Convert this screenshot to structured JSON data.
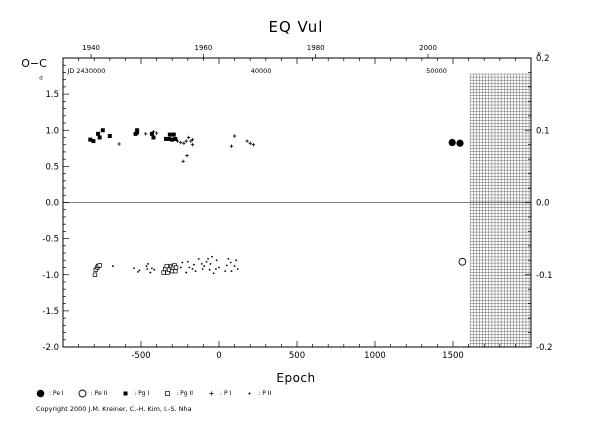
{
  "chart_data": {
    "type": "scatter",
    "title": "EQ Vul",
    "ylabel_left": "O−C",
    "xlabel": "Epoch",
    "left_unit_marker": "d",
    "right_unit_marker": "P",
    "xlim": [
      -1000,
      2000
    ],
    "ylim": [
      -2.0,
      2.0
    ],
    "right_axis_scale": 10,
    "bottom_ticks": [
      {
        "v": -500,
        "label": "-500"
      },
      {
        "v": 0,
        "label": "0"
      },
      {
        "v": 500,
        "label": "500"
      },
      {
        "v": 1000,
        "label": "1000"
      },
      {
        "v": 1500,
        "label": "1500"
      }
    ],
    "left_ticks": [
      {
        "v": 1.5,
        "label": "1.5"
      },
      {
        "v": 1.0,
        "label": "1.0"
      },
      {
        "v": 0.5,
        "label": "0.5"
      },
      {
        "v": 0.0,
        "label": "0.0"
      },
      {
        "v": -0.5,
        "label": "-0.5"
      },
      {
        "v": -1.0,
        "label": "-1.0"
      },
      {
        "v": -1.5,
        "label": "-1.5"
      },
      {
        "v": -2.0,
        "label": "-2.0"
      }
    ],
    "right_ticks": [
      {
        "v": 2.0,
        "label": "0.2"
      },
      {
        "v": 1.0,
        "label": "0.1"
      },
      {
        "v": 0.0,
        "label": "0.0"
      },
      {
        "v": -1.0,
        "label": "-0.1"
      },
      {
        "v": -2.0,
        "label": "-0.2"
      }
    ],
    "top_year_ticks": [
      {
        "v": -820,
        "label": "1940"
      },
      {
        "v": -100,
        "label": "1960"
      },
      {
        "v": 620,
        "label": "1980"
      },
      {
        "v": 1340,
        "label": "2000"
      }
    ],
    "jd_labels": [
      {
        "v": -850,
        "label": "JD 2430000"
      },
      {
        "v": 270,
        "label": "40000"
      },
      {
        "v": 1395,
        "label": "50000"
      }
    ],
    "future_start_epoch": 1610,
    "zero_line": true,
    "series": [
      {
        "key": "PeI",
        "marker": "filled-circle-large",
        "points": [
          [
            1495,
            0.83
          ],
          [
            1545,
            0.82
          ]
        ]
      },
      {
        "key": "PeII",
        "marker": "open-circle-large",
        "points": [
          [
            1560,
            -0.82
          ]
        ]
      },
      {
        "key": "PgI",
        "marker": "filled-square",
        "points": [
          [
            -825,
            0.87
          ],
          [
            -805,
            0.85
          ],
          [
            -775,
            0.95
          ],
          [
            -765,
            0.9
          ],
          [
            -745,
            1.0
          ],
          [
            -700,
            0.92
          ],
          [
            -525,
            0.97
          ],
          [
            -525,
            1.0
          ],
          [
            -535,
            0.95
          ],
          [
            -430,
            0.95
          ],
          [
            -420,
            0.9
          ],
          [
            -340,
            0.88
          ],
          [
            -315,
            0.94
          ],
          [
            -320,
            0.88
          ],
          [
            -300,
            0.87
          ],
          [
            -290,
            0.94
          ],
          [
            -280,
            0.88
          ]
        ]
      },
      {
        "key": "PgII",
        "marker": "open-square",
        "points": [
          [
            -795,
            -1.0
          ],
          [
            -790,
            -0.93
          ],
          [
            -780,
            -0.9
          ],
          [
            -775,
            -0.88
          ],
          [
            -765,
            -0.87
          ],
          [
            -355,
            -0.97
          ],
          [
            -345,
            -0.92
          ],
          [
            -335,
            -0.88
          ],
          [
            -330,
            -0.97
          ],
          [
            -320,
            -0.93
          ],
          [
            -305,
            -0.88
          ],
          [
            -300,
            -0.95
          ],
          [
            -295,
            -0.9
          ],
          [
            -285,
            -0.87
          ],
          [
            -280,
            -0.95
          ],
          [
            -275,
            -0.9
          ]
        ]
      },
      {
        "key": "PvI",
        "marker": "plus",
        "points": [
          [
            -640,
            0.81
          ],
          [
            -470,
            0.95
          ],
          [
            -420,
            0.98
          ],
          [
            -400,
            0.96
          ],
          [
            -265,
            0.85
          ],
          [
            -245,
            0.83
          ],
          [
            -225,
            0.82
          ],
          [
            -210,
            0.85
          ],
          [
            -195,
            0.9
          ],
          [
            -180,
            0.85
          ],
          [
            -170,
            0.87
          ],
          [
            -205,
            0.65
          ],
          [
            -230,
            0.57
          ],
          [
            -170,
            0.8
          ],
          [
            100,
            0.92
          ],
          [
            80,
            0.78
          ],
          [
            180,
            0.85
          ],
          [
            200,
            0.82
          ],
          [
            220,
            0.8
          ]
        ]
      },
      {
        "key": "PvII",
        "marker": "dot",
        "points": [
          [
            -680,
            -0.88
          ],
          [
            -545,
            -0.91
          ],
          [
            -520,
            -0.96
          ],
          [
            -510,
            -0.94
          ],
          [
            -465,
            -0.88
          ],
          [
            -460,
            -0.92
          ],
          [
            -455,
            -0.85
          ],
          [
            -440,
            -0.97
          ],
          [
            -430,
            -0.91
          ],
          [
            -415,
            -0.93
          ],
          [
            -170,
            -0.92
          ],
          [
            -160,
            -0.86
          ],
          [
            -150,
            -0.95
          ],
          [
            -130,
            -0.78
          ],
          [
            -110,
            -0.85
          ],
          [
            -105,
            -0.92
          ],
          [
            -95,
            -0.88
          ],
          [
            -80,
            -0.82
          ],
          [
            -70,
            -0.78
          ],
          [
            -60,
            -0.93
          ],
          [
            -55,
            -0.85
          ],
          [
            -45,
            -0.75
          ],
          [
            -35,
            -0.98
          ],
          [
            -20,
            -0.92
          ],
          [
            0,
            -0.9
          ],
          [
            40,
            -0.95
          ],
          [
            50,
            -0.87
          ],
          [
            60,
            -0.78
          ],
          [
            75,
            -0.83
          ],
          [
            80,
            -0.95
          ],
          [
            -15,
            -0.8
          ],
          [
            100,
            -0.88
          ],
          [
            110,
            -0.8
          ],
          [
            120,
            -0.92
          ],
          [
            -190,
            -0.9
          ],
          [
            -200,
            -0.82
          ],
          [
            -210,
            -0.97
          ],
          [
            -235,
            -0.83
          ],
          [
            -245,
            -0.9
          ]
        ]
      }
    ]
  },
  "legend": [
    {
      "marker": "filled-circle-large",
      "label": ": Pe I"
    },
    {
      "marker": "open-circle-large",
      "label": ": Pe II"
    },
    {
      "marker": "filled-square",
      "label": ": Pg I"
    },
    {
      "marker": "open-square",
      "label": ": Pg II"
    },
    {
      "marker": "plus",
      "label": ": P I"
    },
    {
      "marker": "dot",
      "label": ": P II"
    }
  ],
  "copyright": "Copyright 2000 J.M. Kreiner, C.-H. Kim, I.-S. Nha"
}
